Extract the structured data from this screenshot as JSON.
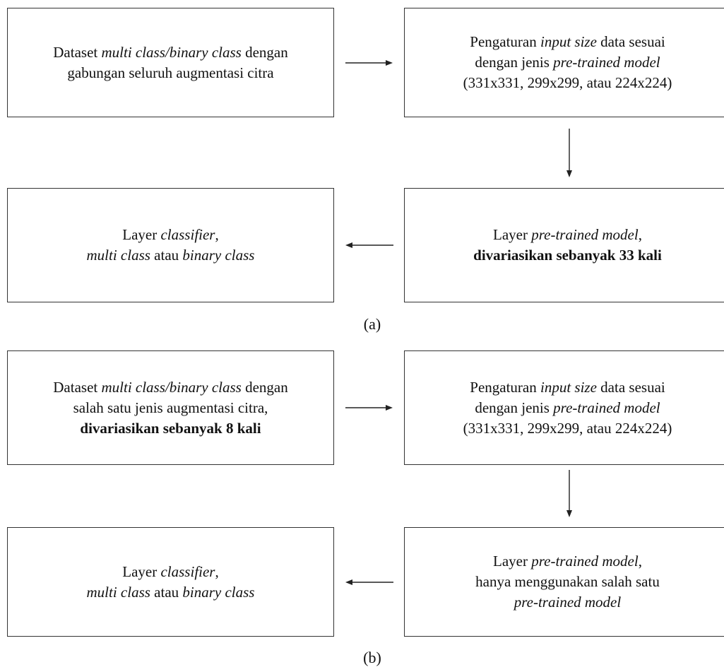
{
  "diagram_a": {
    "caption": "(a)",
    "box1": [
      [
        {
          "t": "Dataset ",
          "s": "n"
        },
        {
          "t": "multi class/binary class",
          "s": "i"
        },
        {
          "t": " dengan",
          "s": "n"
        }
      ],
      [
        {
          "t": "gabungan seluruh augmentasi citra",
          "s": "n"
        }
      ]
    ],
    "box2": [
      [
        {
          "t": "Pengaturan ",
          "s": "n"
        },
        {
          "t": "input size",
          "s": "i"
        },
        {
          "t": " data sesuai",
          "s": "n"
        }
      ],
      [
        {
          "t": "dengan jenis ",
          "s": "n"
        },
        {
          "t": "pre-trained model",
          "s": "i"
        }
      ],
      [
        {
          "t": "(331x331, 299x299, atau 224x224)",
          "s": "n"
        }
      ]
    ],
    "box3": [
      [
        {
          "t": "Layer ",
          "s": "n"
        },
        {
          "t": "pre-trained model",
          "s": "i"
        },
        {
          "t": ",",
          "s": "n"
        }
      ],
      [
        {
          "t": "divariasikan sebanyak 33 kali",
          "s": "b"
        }
      ]
    ],
    "box4": [
      [
        {
          "t": "Layer ",
          "s": "n"
        },
        {
          "t": "classifier",
          "s": "i"
        },
        {
          "t": ",",
          "s": "n"
        }
      ],
      [
        {
          "t": "multi class",
          "s": "i"
        },
        {
          "t": " atau ",
          "s": "n"
        },
        {
          "t": "binary class",
          "s": "i"
        }
      ]
    ]
  },
  "diagram_b": {
    "caption": "(b)",
    "box1": [
      [
        {
          "t": "Dataset ",
          "s": "n"
        },
        {
          "t": "multi class/binary class",
          "s": "i"
        },
        {
          "t": " dengan",
          "s": "n"
        }
      ],
      [
        {
          "t": "salah satu jenis augmentasi citra,",
          "s": "n"
        }
      ],
      [
        {
          "t": "divariasikan sebanyak 8 kali",
          "s": "b"
        }
      ]
    ],
    "box2": [
      [
        {
          "t": "Pengaturan ",
          "s": "n"
        },
        {
          "t": "input size",
          "s": "i"
        },
        {
          "t": " data sesuai",
          "s": "n"
        }
      ],
      [
        {
          "t": "dengan jenis ",
          "s": "n"
        },
        {
          "t": "pre-trained model",
          "s": "i"
        }
      ],
      [
        {
          "t": "(331x331, 299x299, atau 224x224)",
          "s": "n"
        }
      ]
    ],
    "box3": [
      [
        {
          "t": "Layer ",
          "s": "n"
        },
        {
          "t": "pre-trained model",
          "s": "i"
        },
        {
          "t": ",",
          "s": "n"
        }
      ],
      [
        {
          "t": "hanya menggunakan salah satu",
          "s": "n"
        }
      ],
      [
        {
          "t": "pre-trained model",
          "s": "i"
        }
      ]
    ],
    "box4": [
      [
        {
          "t": "Layer ",
          "s": "n"
        },
        {
          "t": "classifier",
          "s": "i"
        },
        {
          "t": ",",
          "s": "n"
        }
      ],
      [
        {
          "t": "multi class",
          "s": "i"
        },
        {
          "t": " atau ",
          "s": "n"
        },
        {
          "t": "binary class",
          "s": "i"
        }
      ]
    ]
  }
}
